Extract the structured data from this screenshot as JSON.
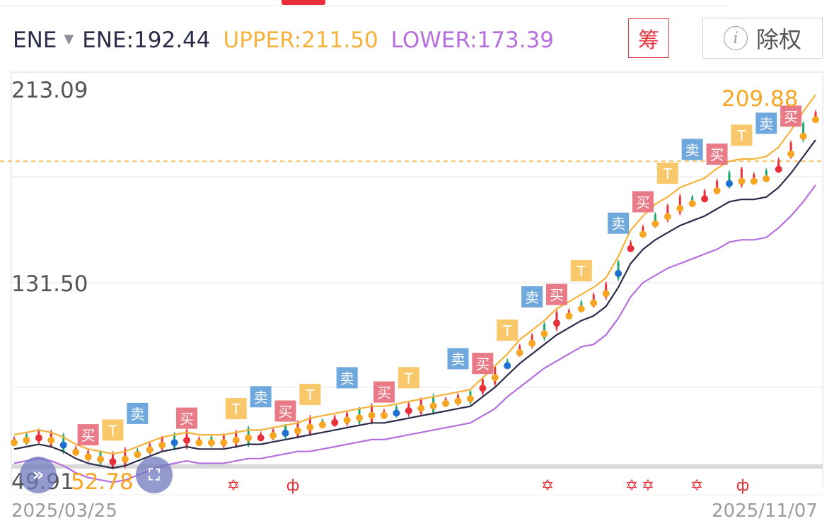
{
  "header": {
    "indicator_name": "ENE",
    "ene_label": "ENE:192.44",
    "upper_label": "UPPER:211.50",
    "lower_label": "LOWER:173.39",
    "chip_label": "筹",
    "exright_label": "除权"
  },
  "colors": {
    "ene": "#2b2b4a",
    "upper": "#f6b23a",
    "lower": "#b56fdf",
    "up": "#e8303a",
    "down": "#17a86b",
    "buy_tag": "#e76c7a",
    "sell_tag": "#5f9fd8",
    "t_tag": "#f7c25a"
  },
  "icons": {
    "dropdown": "triangle-down-icon",
    "info": "info-icon",
    "left_nav": "double-chevron-left-icon",
    "expand": "expand-icon"
  },
  "chart_data": {
    "type": "line",
    "x_start": "2025/03/25",
    "x_end": "2025/11/07",
    "y_max_label": "213.09",
    "y_mid_label": "131.50",
    "y_min_label": "49.91",
    "ylim": [
      49.91,
      213.09
    ],
    "current_price_label": "209.88",
    "low_price_label": "52.78",
    "buy_tag_text": "买",
    "sell_tag_text": "卖",
    "t_tag_text": "T",
    "signal_marks": [
      "✡",
      "ф",
      "✡",
      "✡",
      "✡",
      "✡",
      "ф"
    ],
    "series": [
      {
        "values": [
          62,
          63,
          64,
          63,
          61,
          58,
          56,
          55,
          54,
          55,
          57,
          59,
          61,
          62,
          63,
          62,
          62,
          62,
          63,
          64,
          64,
          65,
          66,
          67,
          68,
          69,
          70,
          71,
          72,
          73,
          73,
          74,
          75,
          76,
          77,
          78,
          79,
          80,
          84,
          88,
          93,
          98,
          102,
          106,
          110,
          113,
          116,
          118,
          122,
          130,
          140,
          146,
          150,
          153,
          156,
          158,
          160,
          163,
          166,
          167,
          167,
          168,
          172,
          178,
          185,
          192
        ]
      },
      {
        "values": [
          68,
          69,
          70,
          69,
          67,
          64,
          62,
          61,
          60,
          61,
          63,
          65,
          67,
          68,
          69,
          68,
          68,
          68,
          69,
          70,
          70,
          71,
          72,
          73,
          75,
          76,
          77,
          78,
          79,
          80,
          80,
          81,
          82,
          83,
          84,
          85,
          86,
          87,
          92,
          97,
          102,
          108,
          112,
          116,
          121,
          124,
          127,
          130,
          134,
          143,
          154,
          160,
          165,
          168,
          172,
          174,
          176,
          180,
          183,
          184,
          184,
          185,
          189,
          196,
          204,
          211
        ]
      },
      {
        "values": [
          56,
          57,
          58,
          57,
          55,
          52,
          50,
          49,
          48,
          49,
          51,
          53,
          55,
          56,
          57,
          56,
          56,
          56,
          57,
          58,
          58,
          59,
          60,
          61,
          61,
          62,
          63,
          64,
          65,
          66,
          66,
          67,
          68,
          69,
          70,
          71,
          72,
          73,
          76,
          79,
          84,
          88,
          92,
          96,
          99,
          102,
          105,
          106,
          110,
          117,
          126,
          132,
          135,
          138,
          140,
          142,
          144,
          146,
          149,
          150,
          150,
          151,
          155,
          160,
          166,
          173
        ]
      }
    ]
  }
}
